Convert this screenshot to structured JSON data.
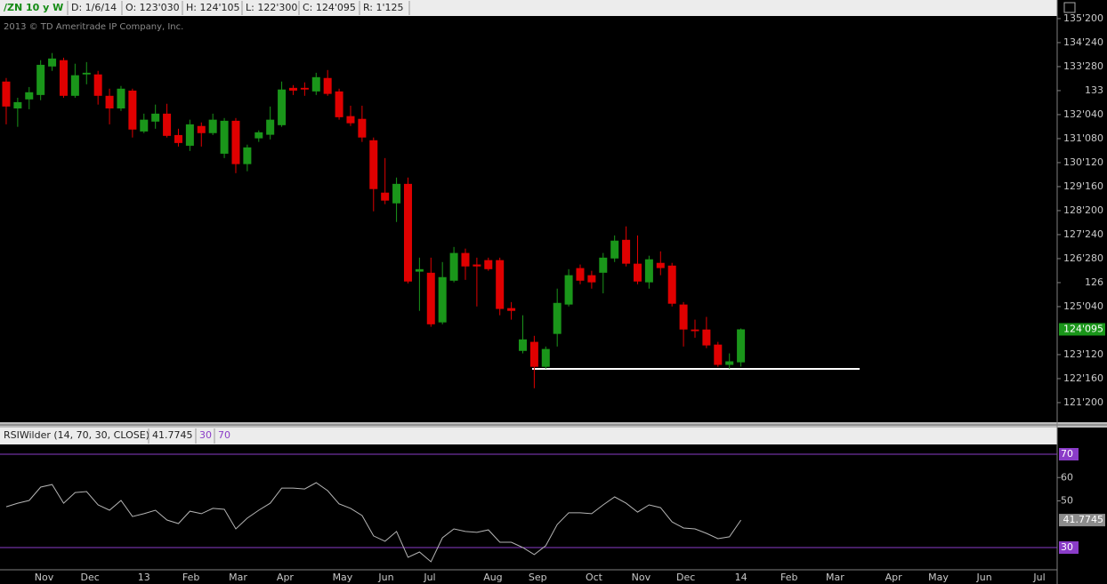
{
  "header": {
    "items": [
      "/ZN 10 y W",
      "D: 1/6/14",
      "O: 123'030",
      "H: 124'105",
      "L: 122'300",
      "C: 124'095",
      "R: 1'125"
    ]
  },
  "copyright": "2013 © TD Ameritrade IP Company, Inc.",
  "chart_data": [
    {
      "type": "candlestick",
      "open": [
        133.33,
        132.35,
        132.68,
        132.84,
        133.88,
        134.11,
        132.81,
        133.59,
        133.59,
        132.81,
        132.35,
        133.0,
        131.51,
        131.87,
        132.16,
        131.38,
        130.99,
        131.71,
        131.45,
        130.7,
        131.9,
        130.32,
        131.26,
        131.39,
        131.74,
        133.1,
        133.1,
        132.97,
        133.46,
        132.97,
        132.07,
        131.97,
        131.19,
        129.28,
        128.89,
        129.6,
        126.4,
        126.36,
        124.55,
        126.07,
        127.08,
        126.66,
        126.82,
        126.82,
        125.07,
        123.51,
        123.84,
        122.93,
        124.13,
        125.2,
        126.53,
        126.27,
        126.36,
        126.88,
        127.56,
        126.69,
        126.01,
        126.72,
        126.62,
        125.2,
        124.29,
        124.29,
        123.74,
        123.0,
        123.09375
      ],
      "high": [
        133.46,
        132.74,
        133.13,
        134.11,
        134.37,
        134.2,
        133.98,
        134.04,
        133.72,
        133.07,
        133.17,
        133.07,
        132.16,
        132.49,
        132.52,
        131.61,
        131.94,
        131.84,
        132.16,
        132.0,
        132.0,
        131.03,
        131.55,
        132.42,
        133.33,
        133.2,
        133.3,
        133.65,
        133.75,
        133.07,
        132.45,
        132.45,
        131.29,
        130.54,
        129.83,
        129.83,
        126.91,
        126.91,
        126.75,
        127.3,
        127.24,
        126.91,
        126.91,
        126.91,
        125.29,
        124.81,
        124.06,
        123.67,
        125.78,
        126.49,
        126.66,
        126.43,
        127.08,
        127.72,
        128.05,
        127.72,
        126.98,
        127.14,
        126.72,
        125.29,
        124.65,
        124.75,
        123.84,
        123.42,
        124.328125
      ],
      "low": [
        131.77,
        131.68,
        132.32,
        132.65,
        133.72,
        132.74,
        132.74,
        133.23,
        132.49,
        131.77,
        132.26,
        131.29,
        131.45,
        131.61,
        131.29,
        130.96,
        130.8,
        130.96,
        131.38,
        130.54,
        129.99,
        130.06,
        131.13,
        131.22,
        131.68,
        132.84,
        132.81,
        132.84,
        132.81,
        131.94,
        131.71,
        131.13,
        128.6,
        128.86,
        128.21,
        125.97,
        124.97,
        124.39,
        124.48,
        126.01,
        126.1,
        125.13,
        126.43,
        124.81,
        124.65,
        123.42,
        122.15,
        122.86,
        123.67,
        125.13,
        125.94,
        125.78,
        125.61,
        126.75,
        126.59,
        125.94,
        125.78,
        126.27,
        125.13,
        123.67,
        123.99,
        123.61,
        122.93,
        122.86,
        122.9375
      ],
      "close": [
        132.42,
        132.58,
        132.94,
        133.94,
        134.17,
        132.81,
        133.56,
        133.65,
        132.81,
        132.35,
        133.07,
        131.58,
        131.94,
        132.16,
        131.35,
        131.09,
        131.77,
        131.45,
        131.94,
        131.9,
        130.32,
        130.93,
        131.48,
        131.94,
        133.04,
        133.0,
        133.04,
        133.49,
        132.88,
        132.03,
        131.81,
        131.29,
        129.41,
        128.99,
        129.6,
        126.04,
        126.49,
        124.48,
        126.2,
        127.08,
        126.59,
        126.59,
        126.49,
        125.04,
        124.97,
        123.93,
        122.93,
        123.58,
        125.26,
        126.27,
        126.07,
        126.01,
        126.91,
        127.53,
        126.69,
        126.04,
        126.85,
        126.53,
        125.23,
        124.29,
        124.23,
        123.71,
        123.0,
        123.13,
        124.296875
      ],
      "up_color": "#1a961a",
      "down_color": "#e00000",
      "xlim": [
        -0.54,
        91.55
      ],
      "ylim": [
        120.91,
        135.72
      ],
      "xticks": [
        {
          "value": 3.3,
          "label": "Nov"
        },
        {
          "value": 7.3,
          "label": "Dec"
        },
        {
          "value": 12.0,
          "label": "13"
        },
        {
          "value": 16.1,
          "label": "Feb"
        },
        {
          "value": 20.2,
          "label": "Mar"
        },
        {
          "value": 24.3,
          "label": "Apr"
        },
        {
          "value": 29.3,
          "label": "May"
        },
        {
          "value": 33.1,
          "label": "Jun"
        },
        {
          "value": 36.9,
          "label": "Jul"
        },
        {
          "value": 42.4,
          "label": "Aug"
        },
        {
          "value": 46.3,
          "label": "Sep"
        },
        {
          "value": 51.2,
          "label": "Oct"
        },
        {
          "value": 55.3,
          "label": "Nov"
        },
        {
          "value": 59.2,
          "label": "Dec"
        },
        {
          "value": 64.0,
          "label": "14"
        },
        {
          "value": 68.2,
          "label": "Feb"
        },
        {
          "value": 72.2,
          "label": "Mar"
        },
        {
          "value": 77.3,
          "label": "Apr"
        },
        {
          "value": 81.2,
          "label": "May"
        },
        {
          "value": 85.2,
          "label": "Jun"
        },
        {
          "value": 90.0,
          "label": "Jul"
        }
      ],
      "yticks": [
        {
          "value": 135.625,
          "label": "135'200"
        },
        {
          "value": 134.75,
          "label": "134'240"
        },
        {
          "value": 133.875,
          "label": "133'280"
        },
        133,
        {
          "value": 132.125,
          "label": "132'040"
        },
        {
          "value": 131.25,
          "label": "131'080"
        },
        {
          "value": 130.375,
          "label": "130'120"
        },
        {
          "value": 129.5,
          "label": "129'160"
        },
        {
          "value": 128.625,
          "label": "128'200"
        },
        {
          "value": 127.75,
          "label": "127'240"
        },
        {
          "value": 126.875,
          "label": "126'280"
        },
        126,
        {
          "value": 125.125,
          "label": "125'040"
        },
        {
          "value": 123.375,
          "label": "123'120"
        },
        {
          "value": 122.5,
          "label": "122'160"
        },
        {
          "value": 121.625,
          "label": "121'200"
        }
      ],
      "last_price": {
        "value": 124.296875,
        "label": "124'095"
      }
    },
    {
      "type": "line",
      "title": "RSIWilder (14, 70, 30, CLOSE)",
      "series": [
        {
          "color": "#b4b4b4",
          "values": [
            47.5,
            49.0,
            50.2,
            55.9,
            57.0,
            49.0,
            53.6,
            54.0,
            48.3,
            46.0,
            50.2,
            43.3,
            44.5,
            46.0,
            41.8,
            40.3,
            45.6,
            44.5,
            46.8,
            46.4,
            38.0,
            42.6,
            46.0,
            49.0,
            55.5,
            55.5,
            55.1,
            57.8,
            54.4,
            48.7,
            46.8,
            43.7,
            35.0,
            32.7,
            36.9,
            25.8,
            28.1,
            23.9,
            34.2,
            38.0,
            36.9,
            36.5,
            37.6,
            32.3,
            32.3,
            30.0,
            27.0,
            30.8,
            39.9,
            44.9,
            44.9,
            44.5,
            48.3,
            51.7,
            49.0,
            45.2,
            48.3,
            47.1,
            41.0,
            38.4,
            38.0,
            36.1,
            33.8,
            34.6,
            41.7745
          ]
        }
      ],
      "levels": [
        30,
        70
      ],
      "level_color": "#8a3cc8",
      "ylim": [
        20.86,
        74.19
      ],
      "yticks": [
        70,
        60,
        50,
        30
      ]
    }
  ]
}
